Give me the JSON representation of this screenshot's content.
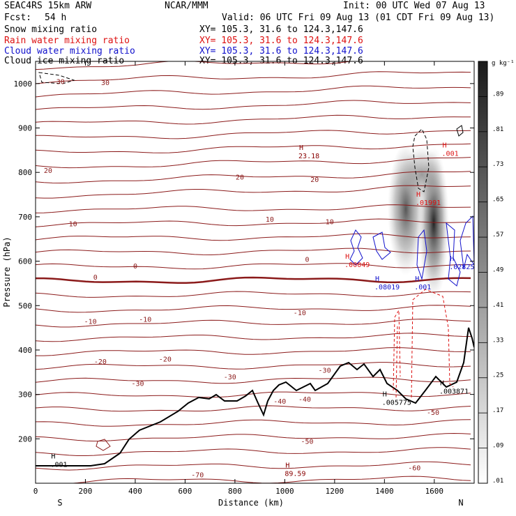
{
  "header": {
    "model": "SEAC4RS 15km ARW",
    "org": "NCAR/MMM",
    "init": "Init: 00 UTC Wed 07 Aug 13",
    "fcst_label": "Fcst:",
    "fcst_value": "54 h",
    "valid": "Valid: 06 UTC Fri 09 Aug 13 (01 CDT Fri 09 Aug 13)"
  },
  "fields": [
    {
      "name": "Snow mixing ratio",
      "xy": "XY= 105.3, 31.6 to 124.3,147.6",
      "color": "#000000"
    },
    {
      "name": "Rain water mixing ratio",
      "xy": "XY= 105.3, 31.6 to 124.3,147.6",
      "color": "#dd1111"
    },
    {
      "name": "Cloud water mixing ratio",
      "xy": "XY= 105.3, 31.6 to 124.3,147.6",
      "color": "#1111cc"
    },
    {
      "name": "Cloud ice mixing ratio",
      "xy": "XY= 105.3, 31.6 to 124.3,147.6",
      "color": "#000000"
    }
  ],
  "chart_data": {
    "type": "cross-section contour",
    "xlabel": "Distance (km)",
    "ylabel": "Pressure (hPa)",
    "xlim": [
      0,
      1760
    ],
    "ylim": [
      1050,
      100
    ],
    "x_ticks": [
      "0",
      "200",
      "400",
      "600",
      "800",
      "1000",
      "1200",
      "1400",
      "1600"
    ],
    "y_ticks": [
      "200",
      "300",
      "400",
      "500",
      "600",
      "700",
      "800",
      "900",
      "1000"
    ],
    "x_start_label": "S",
    "x_end_label": "N",
    "colorbar": {
      "unit": "g kg⁻¹",
      "labels": [
        ".89",
        ".81",
        ".73",
        ".65",
        ".57",
        ".49",
        ".41",
        ".33",
        ".25",
        ".17",
        ".09",
        ".01"
      ]
    },
    "temperature_labels": [
      {
        "text": "-70",
        "x": 650,
        "p": 120
      },
      {
        "text": "-60",
        "x": 1520,
        "p": 135
      },
      {
        "text": "-50",
        "x": 1090,
        "p": 195
      },
      {
        "text": "-50",
        "x": 1595,
        "p": 260
      },
      {
        "text": "-40",
        "x": 980,
        "p": 285
      },
      {
        "text": "-40",
        "x": 1080,
        "p": 290
      },
      {
        "text": "-30",
        "x": 410,
        "p": 325
      },
      {
        "text": "-30",
        "x": 780,
        "p": 340
      },
      {
        "text": "-30",
        "x": 1160,
        "p": 355
      },
      {
        "text": "-20",
        "x": 260,
        "p": 375
      },
      {
        "text": "-20",
        "x": 520,
        "p": 380
      },
      {
        "text": "-10",
        "x": 220,
        "p": 465
      },
      {
        "text": "-10",
        "x": 440,
        "p": 470
      },
      {
        "text": "-10",
        "x": 1060,
        "p": 485
      },
      {
        "text": "0",
        "x": 240,
        "p": 565
      },
      {
        "text": "0",
        "x": 400,
        "p": 590
      },
      {
        "text": "0",
        "x": 1090,
        "p": 605
      },
      {
        "text": "10",
        "x": 150,
        "p": 685
      },
      {
        "text": "10",
        "x": 940,
        "p": 695
      },
      {
        "text": "10",
        "x": 1180,
        "p": 690
      },
      {
        "text": "20",
        "x": 820,
        "p": 790
      },
      {
        "text": "20",
        "x": 1120,
        "p": 785
      },
      {
        "text": "20",
        "x": 50,
        "p": 805
      },
      {
        "text": "30",
        "x": 100,
        "p": 1005
      },
      {
        "text": "30",
        "x": 280,
        "p": 1003
      }
    ],
    "maxima_labels": [
      {
        "text": ".001",
        "x": 60,
        "p": 140,
        "color": "#000000"
      },
      {
        "text": "89.59",
        "x": 1000,
        "p": 120,
        "color": "#880000"
      },
      {
        "text": ".005775",
        "x": 1390,
        "p": 280,
        "color": "#000000"
      },
      {
        "text": ".003871",
        "x": 1620,
        "p": 305,
        "color": "#000000"
      },
      {
        "text": ".08019",
        "x": 1360,
        "p": 540,
        "color": "#1111cc"
      },
      {
        "text": ".001",
        "x": 1520,
        "p": 540,
        "color": "#1111cc"
      },
      {
        "text": ".02825",
        "x": 1660,
        "p": 585,
        "color": "#1111cc"
      },
      {
        "text": ".00049",
        "x": 1240,
        "p": 590,
        "color": "#dd1111"
      },
      {
        "text": ".01991",
        "x": 1525,
        "p": 730,
        "color": "#dd1111"
      },
      {
        "text": "23.18",
        "x": 1055,
        "p": 835,
        "color": "#880000"
      },
      {
        "text": ".001",
        "x": 1630,
        "p": 840,
        "color": "#dd1111"
      }
    ]
  }
}
